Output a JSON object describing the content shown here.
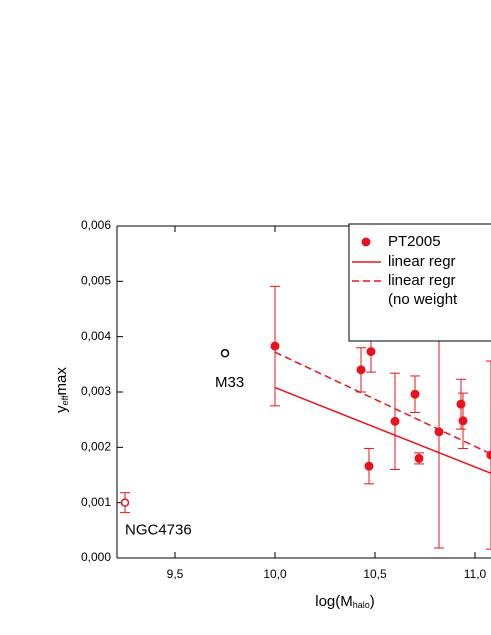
{
  "chart_data": {
    "type": "scatter",
    "x_label": {
      "main": "log(M",
      "sub": "halo",
      "rest": ")"
    },
    "y_label": {
      "main": "y",
      "sub": "eff",
      "rest": "max"
    },
    "xlim": [
      9.21,
      11.08
    ],
    "ylim": [
      0,
      0.006
    ],
    "xticks": [
      {
        "value": 9.5,
        "label": "9,5"
      },
      {
        "value": 10.0,
        "label": "10,0"
      },
      {
        "value": 10.5,
        "label": "10,5"
      },
      {
        "value": 11.0,
        "label": "11,0"
      }
    ],
    "yticks": [
      {
        "value": 0,
        "label": "0,000"
      },
      {
        "value": 0.001,
        "label": "0,001"
      },
      {
        "value": 0.002,
        "label": "0,002"
      },
      {
        "value": 0.003,
        "label": "0,003"
      },
      {
        "value": 0.004,
        "label": "0,004"
      },
      {
        "value": 0.005,
        "label": "0,005"
      },
      {
        "value": 0.006,
        "label": "0,006"
      }
    ],
    "series": [
      {
        "name": "PT2005",
        "color": "#e8141c",
        "marker": "filled",
        "x": [
          10.0,
          10.43,
          10.48,
          10.6,
          10.47,
          10.7,
          10.72,
          10.82,
          10.93,
          10.94,
          11.08
        ],
        "values": [
          0.00383,
          0.0034,
          0.00373,
          0.00247,
          0.00166,
          0.00296,
          0.0018,
          0.00228,
          0.00278,
          0.00248,
          0.00186
        ],
        "errors": [
          0.00108,
          0.0004,
          0.00037,
          0.00087,
          0.00032,
          0.00033,
          0.0001,
          0.0021,
          0.00045,
          0.0005,
          0.0017
        ]
      }
    ],
    "extra_points": [
      {
        "label": "NGC4736",
        "x": 9.25,
        "value": 0.001,
        "error": 0.00018,
        "color": "#e8141c",
        "marker": "open"
      },
      {
        "label": "M33",
        "x": 9.75,
        "value": 0.0037,
        "color": "#000000",
        "marker": "open"
      }
    ],
    "fits": [
      {
        "name": "linear regr",
        "x": [
          10.0,
          11.08
        ],
        "values": [
          0.00308,
          0.00153
        ],
        "color": "#e8141c",
        "dashed": false
      },
      {
        "name": "linear regr",
        "note": "(no weight",
        "x": [
          10.0,
          11.08
        ],
        "values": [
          0.00372,
          0.00188
        ],
        "color": "#e8141c",
        "dashed": true
      }
    ]
  }
}
